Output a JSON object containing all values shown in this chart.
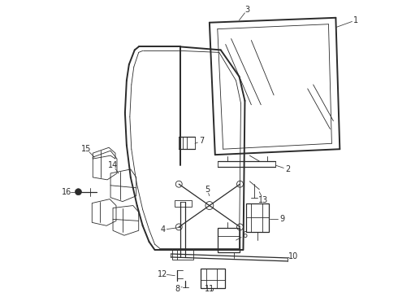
{
  "bg_color": "#ffffff",
  "line_color": "#2a2a2a",
  "lw_thick": 1.4,
  "lw_med": 0.9,
  "lw_thin": 0.6,
  "label_fontsize": 7.0,
  "figsize": [
    4.9,
    3.6
  ],
  "dpi": 100
}
